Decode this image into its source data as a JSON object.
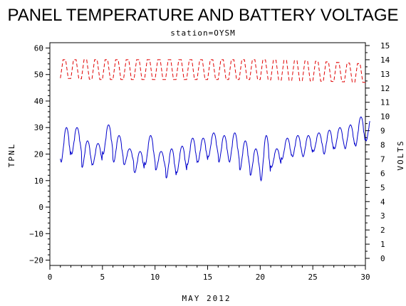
{
  "chart_data": {
    "type": "line",
    "title": "PANEL TEMPERATURE AND BATTERY VOLTAGE",
    "subtitle": "station=OYSM",
    "xlabel": "MAY 2012",
    "ylabel_left": "TPNL",
    "ylabel_right": "VOLTS",
    "xlim": [
      0,
      30
    ],
    "ylim_left": [
      -22,
      62
    ],
    "ylim_right": [
      -0.5,
      15.2
    ],
    "x_ticks": [
      0,
      5,
      10,
      15,
      20,
      25,
      30
    ],
    "y_ticks_left": [
      -20,
      -10,
      0,
      10,
      20,
      30,
      40,
      50,
      60
    ],
    "y_ticks_right": [
      0,
      1,
      2,
      3,
      4,
      5,
      6,
      7,
      8,
      9,
      10,
      11,
      12,
      13,
      14,
      15
    ],
    "grid": false,
    "colors": {
      "tpnl": "#0000cc",
      "volts": "#e00000",
      "axes": "#000000"
    },
    "series": [
      {
        "name": "TPNL",
        "axis": "left",
        "style": "solid",
        "daily": [
          {
            "day": 1,
            "min": 17,
            "max": 30
          },
          {
            "day": 2,
            "min": 20,
            "max": 30
          },
          {
            "day": 3,
            "min": 15,
            "max": 25
          },
          {
            "day": 4,
            "min": 16,
            "max": 24
          },
          {
            "day": 5,
            "min": 20,
            "max": 31
          },
          {
            "day": 6,
            "min": 17,
            "max": 27
          },
          {
            "day": 7,
            "min": 16,
            "max": 22
          },
          {
            "day": 8,
            "min": 13,
            "max": 21
          },
          {
            "day": 9,
            "min": 16,
            "max": 27
          },
          {
            "day": 10,
            "min": 14,
            "max": 21
          },
          {
            "day": 11,
            "min": 11,
            "max": 22
          },
          {
            "day": 12,
            "min": 13,
            "max": 23
          },
          {
            "day": 13,
            "min": 16,
            "max": 26
          },
          {
            "day": 14,
            "min": 17,
            "max": 26
          },
          {
            "day": 15,
            "min": 19,
            "max": 28
          },
          {
            "day": 16,
            "min": 17,
            "max": 27
          },
          {
            "day": 17,
            "min": 17,
            "max": 28
          },
          {
            "day": 18,
            "min": 14,
            "max": 25
          },
          {
            "day": 19,
            "min": 12,
            "max": 22
          },
          {
            "day": 20,
            "min": 10,
            "max": 27
          },
          {
            "day": 21,
            "min": 15,
            "max": 22
          },
          {
            "day": 22,
            "min": 18,
            "max": 26
          },
          {
            "day": 23,
            "min": 19,
            "max": 27
          },
          {
            "day": 24,
            "min": 19,
            "max": 27
          },
          {
            "day": 25,
            "min": 21,
            "max": 28
          },
          {
            "day": 26,
            "min": 20,
            "max": 29
          },
          {
            "day": 27,
            "min": 22,
            "max": 30
          },
          {
            "day": 28,
            "min": 22,
            "max": 31
          },
          {
            "day": 29,
            "min": 23,
            "max": 34
          },
          {
            "day": 30,
            "min": 25,
            "max": 34
          }
        ]
      },
      {
        "name": "VOLTS",
        "axis": "right",
        "style": "dashed",
        "low": 12.6,
        "high": 14.0,
        "daily": [
          {
            "day": 1,
            "min": 12.7,
            "max": 14.0
          },
          {
            "day": 5,
            "min": 12.6,
            "max": 14.0
          },
          {
            "day": 10,
            "min": 12.6,
            "max": 14.0
          },
          {
            "day": 15,
            "min": 12.6,
            "max": 14.0
          },
          {
            "day": 20,
            "min": 12.6,
            "max": 14.0
          },
          {
            "day": 25,
            "min": 12.5,
            "max": 13.9
          },
          {
            "day": 30,
            "min": 12.4,
            "max": 13.7
          }
        ]
      }
    ]
  }
}
